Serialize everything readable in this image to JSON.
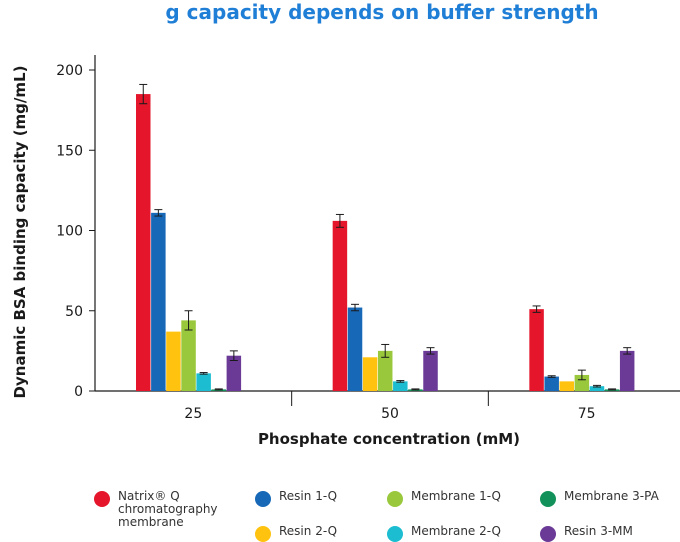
{
  "chart_data": {
    "type": "bar",
    "title": "g capacity depends on buffer strength",
    "ylabel": "Dynamic BSA binding capacity (mg/mL)",
    "xlabel": "Phosphate concentration (mM)",
    "categories": [
      "25",
      "50",
      "75"
    ],
    "ylim": [
      0,
      200
    ],
    "yticks": [
      0,
      50,
      100,
      150,
      200
    ],
    "grid": false,
    "legend_position": "bottom",
    "error_bars": true,
    "series": [
      {
        "name": "Natrix® Q chromatography membrane",
        "color": "#e5162b",
        "values": [
          185,
          106,
          51
        ],
        "errors": [
          6,
          4,
          2
        ]
      },
      {
        "name": "Resin 1-Q",
        "color": "#1769b8",
        "values": [
          111,
          52,
          9
        ],
        "errors": [
          2,
          2,
          0.5
        ]
      },
      {
        "name": "Resin 2-Q",
        "color": "#ffc20e",
        "values": [
          37,
          21,
          6
        ],
        "errors": [
          0,
          0,
          0
        ]
      },
      {
        "name": "Membrane 1-Q",
        "color": "#99c83c",
        "values": [
          44,
          25,
          10
        ],
        "errors": [
          6,
          4,
          3
        ]
      },
      {
        "name": "Membrane 2-Q",
        "color": "#1cbdd0",
        "values": [
          11,
          6,
          3
        ],
        "errors": [
          0.5,
          0.5,
          0.5
        ]
      },
      {
        "name": "Membrane 3-PA",
        "color": "#12925a",
        "values": [
          1,
          1,
          1
        ],
        "errors": [
          0.3,
          0.3,
          0.3
        ]
      },
      {
        "name": "Resin 3-MM",
        "color": "#6a3a96",
        "values": [
          22,
          25,
          25
        ],
        "errors": [
          3,
          2,
          2
        ]
      }
    ]
  }
}
